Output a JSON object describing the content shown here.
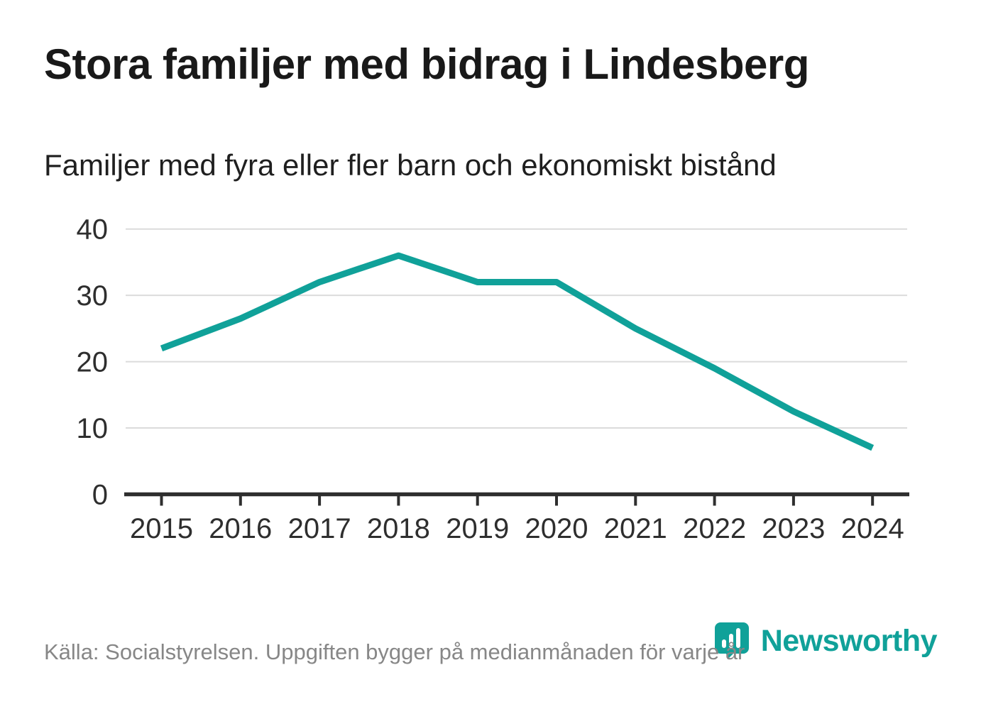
{
  "chart_data": {
    "type": "line",
    "title": "Stora familjer med bidrag i Lindesberg",
    "subtitle": "Familjer med fyra eller fler barn och ekonomiskt bistånd",
    "x": [
      2015,
      2016,
      2017,
      2018,
      2019,
      2020,
      2021,
      2022,
      2023,
      2024
    ],
    "series": [
      {
        "name": "Familjer med fyra eller fler barn och ekonomiskt bistånd",
        "values": [
          22,
          26.5,
          32,
          36,
          32,
          32,
          25,
          19,
          12.5,
          7
        ]
      }
    ],
    "xlabel": "",
    "ylabel": "",
    "ylim": [
      0,
      40
    ],
    "yticks": [
      0,
      10,
      20,
      30,
      40
    ],
    "grid": "horizontal",
    "legend": "none",
    "line_color": "#10A199",
    "gridline_color": "#DBDBDB",
    "axis_color": "#2E2E2E",
    "tick_label_color": "#2E2E2E"
  },
  "footer": {
    "source": "Källa: Socialstyrelsen. Uppgiften bygger på medianmånaden för varje år",
    "brand": "Newsworthy",
    "brand_color": "#10A199"
  }
}
